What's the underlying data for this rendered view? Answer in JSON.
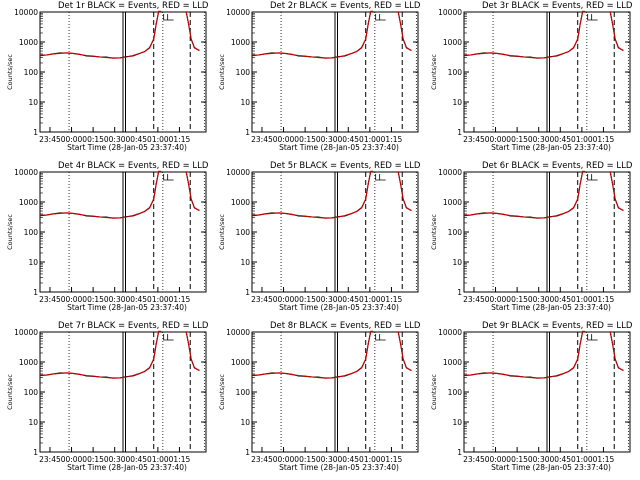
{
  "colors": {
    "events": "#000000",
    "lld": "#cc0000",
    "background": "#ffffff"
  },
  "axis": {
    "y_ticks": [
      "1",
      "10",
      "100",
      "1000",
      "10000"
    ],
    "ylabel": "Counts/sec",
    "xlabel": "Start Time (28-Jan-05 23:37:40)",
    "x_ticks": [
      "23:45",
      "00:00",
      "00:15",
      "00:30",
      "00:45",
      "01:00",
      "01:15"
    ]
  },
  "chart_data": [
    {
      "title": "Det 1r BLACK = Events, RED = LLD",
      "type": "line",
      "ylog": true,
      "ylim": [
        1,
        10000
      ]
    },
    {
      "title": "Det 2r BLACK = Events, RED = LLD",
      "type": "line",
      "ylog": true,
      "ylim": [
        1,
        10000
      ]
    },
    {
      "title": "Det 3r BLACK = Events, RED = LLD",
      "type": "line",
      "ylog": true,
      "ylim": [
        1,
        10000
      ]
    },
    {
      "title": "Det 4r BLACK = Events, RED = LLD",
      "type": "line",
      "ylog": true,
      "ylim": [
        1,
        10000
      ]
    },
    {
      "title": "Det 5r BLACK = Events, RED = LLD",
      "type": "line",
      "ylog": true,
      "ylim": [
        1,
        10000
      ]
    },
    {
      "title": "Det 6r BLACK = Events, RED = LLD",
      "type": "line",
      "ylog": true,
      "ylim": [
        1,
        10000
      ]
    },
    {
      "title": "Det 7r BLACK = Events, RED = LLD",
      "type": "line",
      "ylog": true,
      "ylim": [
        1,
        10000
      ]
    },
    {
      "title": "Det 8r BLACK = Events, RED = LLD",
      "type": "line",
      "ylog": true,
      "ylim": [
        1,
        10000
      ]
    },
    {
      "title": "Det 9r BLACK = Events, RED = LLD",
      "type": "line",
      "ylog": true,
      "ylim": [
        1,
        10000
      ]
    }
  ]
}
